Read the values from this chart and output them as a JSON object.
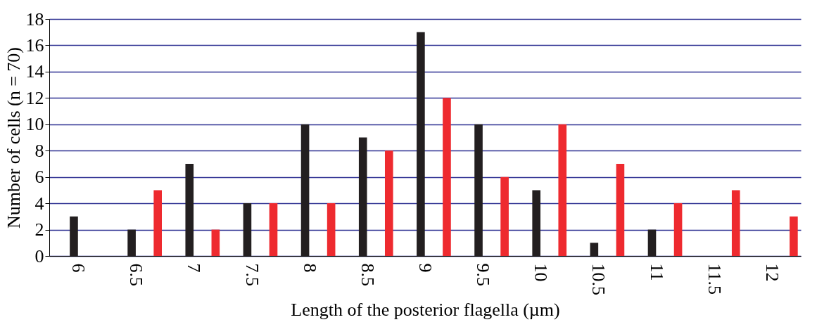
{
  "chart_data": {
    "type": "bar",
    "xlabel": "Length of the posterior flagella (µm)",
    "ylabel": "Number of cells (n = 70)",
    "categories": [
      "6",
      "6.5",
      "7",
      "7.5",
      "8",
      "8.5",
      "9",
      "9.5",
      "10",
      "10.5",
      "11",
      "11.5",
      "12"
    ],
    "series": [
      {
        "color": "#231f20",
        "values": [
          3,
          2,
          7,
          4,
          10,
          9,
          17,
          10,
          5,
          1,
          2,
          0,
          0
        ]
      },
      {
        "color": "#ee2a2f",
        "values": [
          0,
          5,
          2,
          4,
          4,
          8,
          12,
          6,
          10,
          7,
          4,
          5,
          3
        ]
      }
    ],
    "ylim": [
      0,
      18
    ],
    "yticks": [
      0,
      2,
      4,
      6,
      8,
      10,
      12,
      14,
      16,
      18
    ],
    "grid": "y",
    "legend": false
  }
}
